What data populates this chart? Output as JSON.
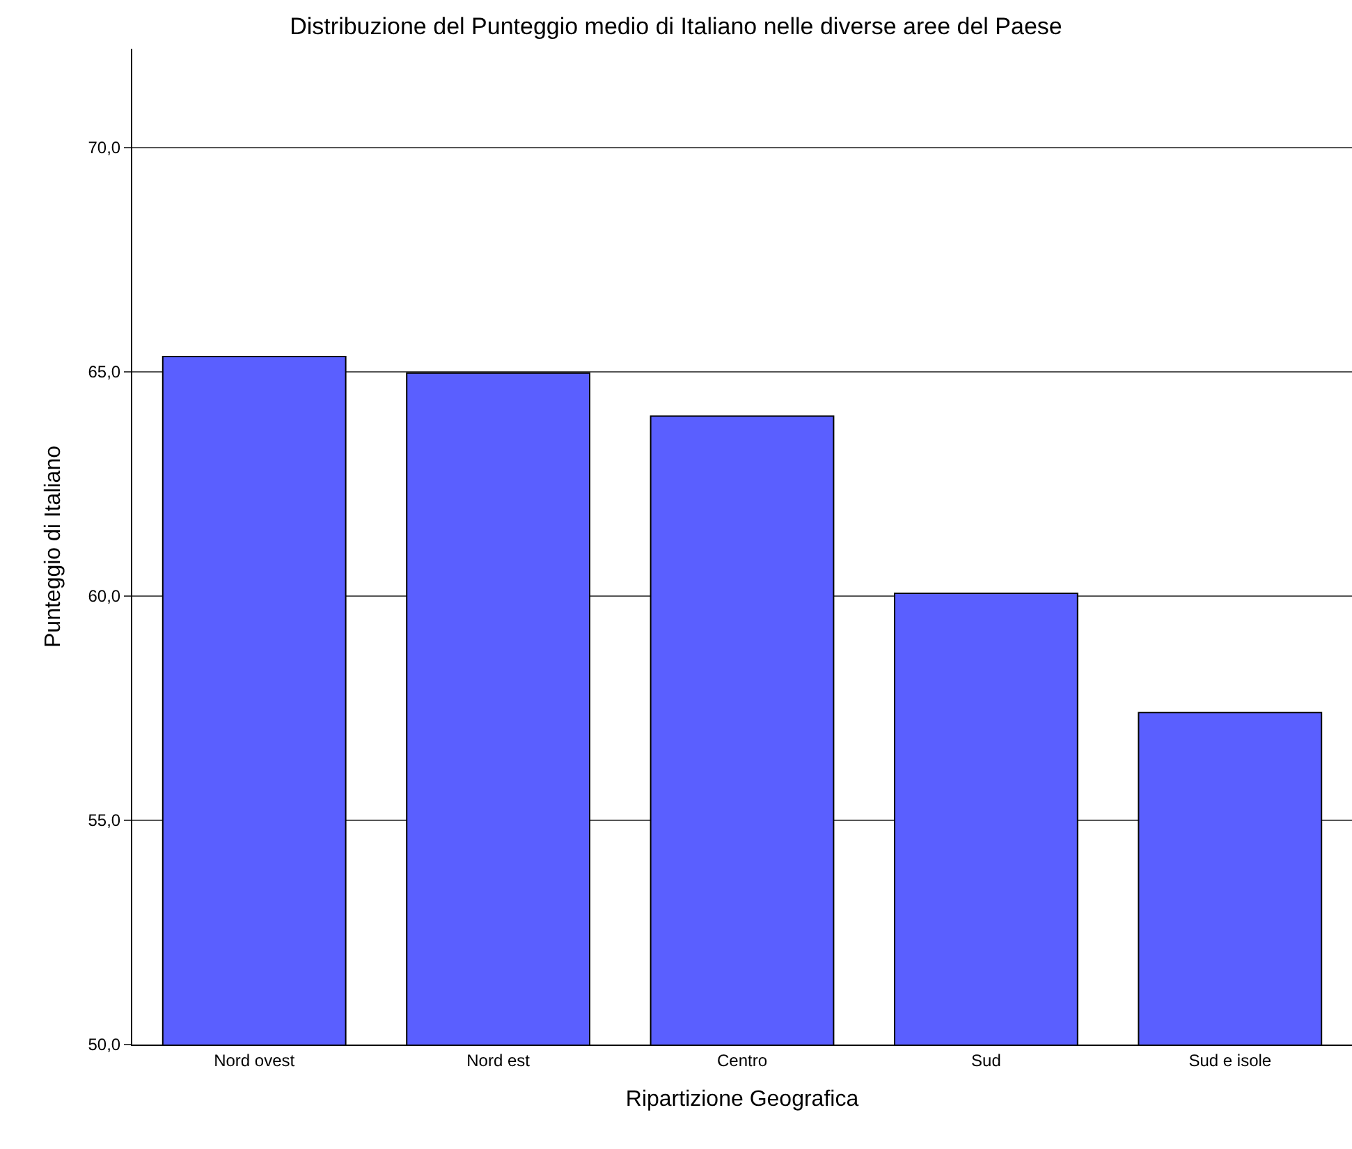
{
  "chart_data": {
    "type": "bar",
    "title": "Distribuzione del Punteggio medio di Italiano nelle diverse aree del Paese",
    "xlabel": "Ripartizione Geografica",
    "ylabel": "Punteggio di Italiano",
    "categories": [
      "Nord ovest",
      "Nord est",
      "Centro",
      "Sud",
      "Sud e isole"
    ],
    "values": [
      65.34,
      64.97,
      64.01,
      60.06,
      57.4
    ],
    "color": "#5a5fff",
    "ylim": [
      50,
      72.2
    ],
    "yticks": [
      {
        "value": 50,
        "label": "50,0"
      },
      {
        "value": 55,
        "label": "55,0"
      },
      {
        "value": 60,
        "label": "60,0"
      },
      {
        "value": 65,
        "label": "65,0"
      },
      {
        "value": 70,
        "label": "70,0"
      }
    ],
    "grid": "y",
    "legend": false
  }
}
